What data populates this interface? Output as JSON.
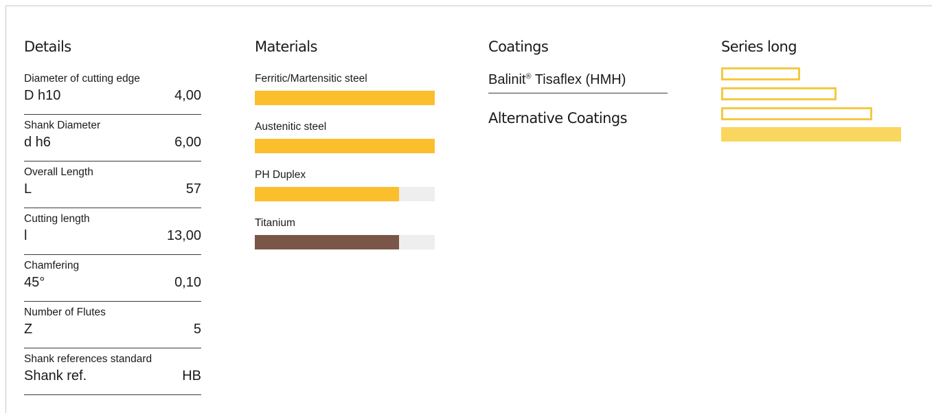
{
  "details": {
    "title": "Details",
    "rows": [
      {
        "label": "Diameter of cutting edge",
        "symbol": "D h10",
        "value": "4,00"
      },
      {
        "label": "Shank Diameter",
        "symbol": "d h6",
        "value": "6,00"
      },
      {
        "label": "Overall Length",
        "symbol": "L",
        "value": "57"
      },
      {
        "label": "Cutting length",
        "symbol": "l",
        "value": "13,00"
      },
      {
        "label": "Chamfering",
        "symbol": "45°",
        "value": "0,10"
      },
      {
        "label": "Number of Flutes",
        "symbol": "Z",
        "value": "5"
      },
      {
        "label": "Shank references standard",
        "symbol": "Shank ref.",
        "value": "HB"
      }
    ]
  },
  "materials": {
    "title": "Materials",
    "items": [
      {
        "label": "Ferritic/Martensitic steel",
        "level": 1.0,
        "color": "#fbbf2d"
      },
      {
        "label": "Austenitic steel",
        "level": 1.0,
        "color": "#fbbf2d"
      },
      {
        "label": "PH Duplex",
        "level": 0.8,
        "color": "#fbbf2d"
      },
      {
        "label": "Titanium",
        "level": 0.8,
        "color": "#7a5648"
      }
    ],
    "track_color": "#eeeeee"
  },
  "coatings": {
    "title": "Coatings",
    "value_main": "Balinit",
    "value_sup": "®",
    "value_rest": " Tisaflex (HMH)",
    "alternative_title": "Alternative Coatings"
  },
  "series": {
    "title": "Series long",
    "bars": [
      {
        "level": 1,
        "filled": false
      },
      {
        "level": 2,
        "filled": false
      },
      {
        "level": 3,
        "filled": false
      },
      {
        "level": 4,
        "filled": true
      }
    ],
    "outline_color": "#f5c842",
    "fill_color": "#f9d65e"
  }
}
